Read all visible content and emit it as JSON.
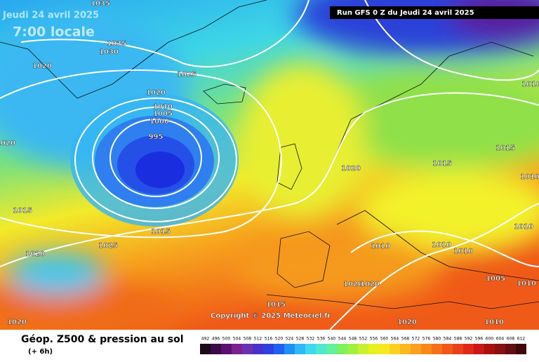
{
  "header": {
    "date": "Jeudi 24 avril 2025",
    "time": "7:00 locale",
    "run": "Run GFS 0 Z du Jeudi 24 avril 2025"
  },
  "copyright": "Copyright © 2025 Meteociel.fr",
  "footer": {
    "title": "Géop. Z500 & pression au sol",
    "subtitle": "(+ 6h)"
  },
  "legend": {
    "values": [
      492,
      496,
      500,
      504,
      508,
      512,
      516,
      520,
      524,
      528,
      532,
      536,
      540,
      544,
      548,
      552,
      556,
      560,
      564,
      568,
      572,
      576,
      580,
      584,
      588,
      592,
      596,
      600,
      604,
      608,
      612
    ]
  },
  "isobars": [
    1035,
    1035,
    1030,
    1020,
    1025,
    1020,
    1010,
    1005,
    1000,
    995,
    1020,
    1015,
    1015,
    1025,
    1020,
    1020,
    1015,
    1020,
    1020,
    1020,
    1010,
    1005,
    1010,
    1010,
    1010,
    1010,
    1010,
    1015,
    1015,
    1020,
    1010,
    1010
  ]
}
